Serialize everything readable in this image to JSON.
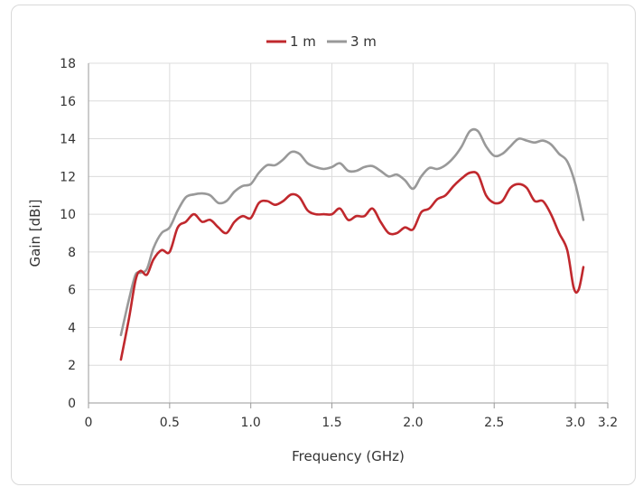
{
  "chart_data": {
    "type": "line",
    "title": "",
    "xlabel": "Frequency (GHz)",
    "ylabel": "Gain [dBi]",
    "xlim": [
      0,
      3.2
    ],
    "ylim": [
      0,
      18
    ],
    "x_ticks": [
      "0",
      "0.5",
      "1.0",
      "1.5",
      "2.0",
      "2.5",
      "3.0",
      "3.2"
    ],
    "y_ticks": [
      "0",
      "2",
      "4",
      "6",
      "8",
      "10",
      "12",
      "14",
      "16",
      "18"
    ],
    "grid": true,
    "legend_position": "top-center",
    "series": [
      {
        "name": "1 m",
        "color": "#c0282d",
        "points": [
          [
            0.2,
            2.3
          ],
          [
            0.25,
            4.5
          ],
          [
            0.29,
            6.5
          ],
          [
            0.32,
            7.0
          ],
          [
            0.36,
            6.8
          ],
          [
            0.4,
            7.6
          ],
          [
            0.45,
            8.1
          ],
          [
            0.5,
            8.0
          ],
          [
            0.55,
            9.3
          ],
          [
            0.6,
            9.6
          ],
          [
            0.65,
            10.0
          ],
          [
            0.7,
            9.6
          ],
          [
            0.75,
            9.7
          ],
          [
            0.8,
            9.3
          ],
          [
            0.85,
            9.0
          ],
          [
            0.9,
            9.6
          ],
          [
            0.95,
            9.9
          ],
          [
            1.0,
            9.8
          ],
          [
            1.05,
            10.6
          ],
          [
            1.1,
            10.7
          ],
          [
            1.15,
            10.5
          ],
          [
            1.2,
            10.7
          ],
          [
            1.25,
            11.05
          ],
          [
            1.3,
            10.9
          ],
          [
            1.35,
            10.2
          ],
          [
            1.4,
            10.0
          ],
          [
            1.45,
            10.0
          ],
          [
            1.5,
            10.0
          ],
          [
            1.55,
            10.3
          ],
          [
            1.6,
            9.7
          ],
          [
            1.65,
            9.9
          ],
          [
            1.7,
            9.9
          ],
          [
            1.75,
            10.3
          ],
          [
            1.8,
            9.6
          ],
          [
            1.85,
            9.0
          ],
          [
            1.9,
            9.0
          ],
          [
            1.95,
            9.3
          ],
          [
            2.0,
            9.2
          ],
          [
            2.05,
            10.1
          ],
          [
            2.1,
            10.3
          ],
          [
            2.15,
            10.8
          ],
          [
            2.2,
            11.0
          ],
          [
            2.25,
            11.5
          ],
          [
            2.3,
            11.9
          ],
          [
            2.35,
            12.2
          ],
          [
            2.4,
            12.1
          ],
          [
            2.45,
            11.0
          ],
          [
            2.5,
            10.6
          ],
          [
            2.55,
            10.7
          ],
          [
            2.6,
            11.4
          ],
          [
            2.65,
            11.6
          ],
          [
            2.7,
            11.4
          ],
          [
            2.75,
            10.7
          ],
          [
            2.8,
            10.7
          ],
          [
            2.85,
            10.0
          ],
          [
            2.9,
            9.0
          ],
          [
            2.95,
            8.1
          ],
          [
            2.99,
            6.1
          ],
          [
            3.02,
            6.0
          ],
          [
            3.05,
            7.2
          ]
        ]
      },
      {
        "name": "3 m",
        "color": "#999999",
        "points": [
          [
            0.2,
            3.6
          ],
          [
            0.25,
            5.5
          ],
          [
            0.29,
            6.8
          ],
          [
            0.32,
            6.9
          ],
          [
            0.36,
            7.1
          ],
          [
            0.4,
            8.2
          ],
          [
            0.45,
            9.0
          ],
          [
            0.5,
            9.3
          ],
          [
            0.55,
            10.2
          ],
          [
            0.6,
            10.9
          ],
          [
            0.65,
            11.05
          ],
          [
            0.7,
            11.1
          ],
          [
            0.75,
            11.0
          ],
          [
            0.8,
            10.6
          ],
          [
            0.85,
            10.7
          ],
          [
            0.9,
            11.2
          ],
          [
            0.95,
            11.5
          ],
          [
            1.0,
            11.6
          ],
          [
            1.05,
            12.2
          ],
          [
            1.1,
            12.6
          ],
          [
            1.15,
            12.6
          ],
          [
            1.2,
            12.9
          ],
          [
            1.25,
            13.3
          ],
          [
            1.3,
            13.2
          ],
          [
            1.35,
            12.7
          ],
          [
            1.4,
            12.5
          ],
          [
            1.45,
            12.4
          ],
          [
            1.5,
            12.5
          ],
          [
            1.55,
            12.7
          ],
          [
            1.6,
            12.3
          ],
          [
            1.65,
            12.3
          ],
          [
            1.7,
            12.5
          ],
          [
            1.75,
            12.55
          ],
          [
            1.8,
            12.3
          ],
          [
            1.85,
            12.0
          ],
          [
            1.9,
            12.1
          ],
          [
            1.95,
            11.8
          ],
          [
            2.0,
            11.35
          ],
          [
            2.05,
            12.0
          ],
          [
            2.1,
            12.45
          ],
          [
            2.15,
            12.4
          ],
          [
            2.2,
            12.6
          ],
          [
            2.25,
            13.0
          ],
          [
            2.3,
            13.6
          ],
          [
            2.35,
            14.4
          ],
          [
            2.4,
            14.4
          ],
          [
            2.45,
            13.6
          ],
          [
            2.5,
            13.1
          ],
          [
            2.55,
            13.2
          ],
          [
            2.6,
            13.6
          ],
          [
            2.65,
            14.0
          ],
          [
            2.7,
            13.9
          ],
          [
            2.75,
            13.8
          ],
          [
            2.8,
            13.9
          ],
          [
            2.85,
            13.7
          ],
          [
            2.9,
            13.2
          ],
          [
            2.95,
            12.8
          ],
          [
            3.0,
            11.6
          ],
          [
            3.05,
            9.7
          ]
        ]
      }
    ]
  }
}
